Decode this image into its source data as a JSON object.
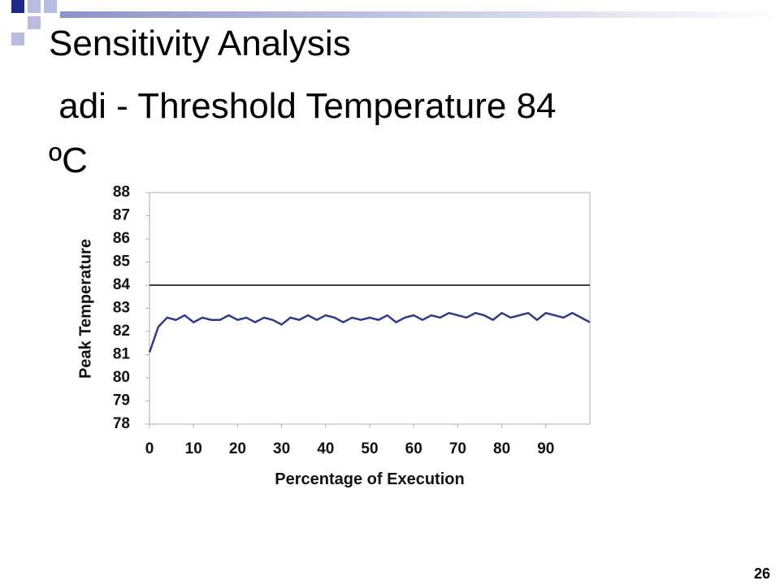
{
  "slide": {
    "title_lines": [
      "Sensitivity Analysis",
      " adi - Threshold Temperature 84",
      "ºC"
    ],
    "page_number": "26"
  },
  "chart_data": {
    "type": "line",
    "x_label": "Percentage of Execution",
    "y_label": "Peak Temperature",
    "x": [
      0,
      2,
      4,
      6,
      8,
      10,
      12,
      14,
      16,
      18,
      20,
      22,
      24,
      26,
      28,
      30,
      32,
      34,
      36,
      38,
      40,
      42,
      44,
      46,
      48,
      50,
      52,
      54,
      56,
      58,
      60,
      62,
      64,
      66,
      68,
      70,
      72,
      74,
      76,
      78,
      80,
      82,
      84,
      86,
      88,
      90,
      92,
      94,
      96,
      98,
      100
    ],
    "series": [
      {
        "color": "#2e3a8c",
        "values": [
          81.1,
          82.2,
          82.6,
          82.5,
          82.7,
          82.4,
          82.6,
          82.5,
          82.5,
          82.7,
          82.5,
          82.6,
          82.4,
          82.6,
          82.5,
          82.3,
          82.6,
          82.5,
          82.7,
          82.5,
          82.7,
          82.6,
          82.4,
          82.6,
          82.5,
          82.6,
          82.5,
          82.7,
          82.4,
          82.6,
          82.7,
          82.5,
          82.7,
          82.6,
          82.8,
          82.7,
          82.6,
          82.8,
          82.7,
          82.5,
          82.8,
          82.6,
          82.7,
          82.8,
          82.5,
          82.8,
          82.7,
          82.6,
          82.8,
          82.6,
          82.4
        ]
      }
    ],
    "threshold": 84,
    "threshold_color": "#000000",
    "xlim": [
      0,
      100
    ],
    "ylim": [
      78,
      88
    ],
    "xticks": [
      0,
      10,
      20,
      30,
      40,
      50,
      60,
      70,
      80,
      90
    ],
    "yticks": [
      78,
      79,
      80,
      81,
      82,
      83,
      84,
      85,
      86,
      87,
      88
    ]
  }
}
